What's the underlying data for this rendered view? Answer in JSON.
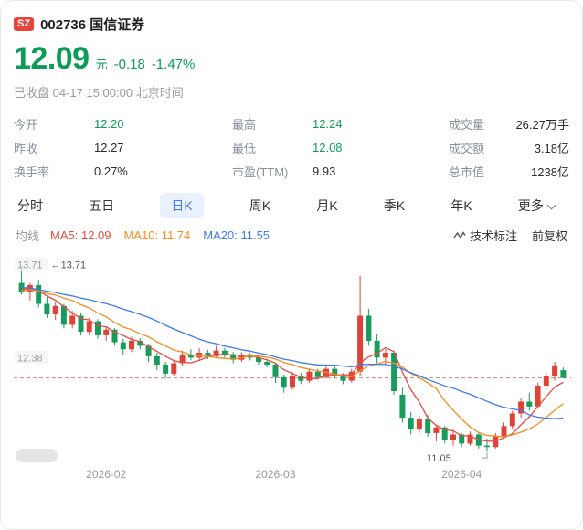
{
  "header": {
    "exchange": "SZ",
    "title": "002736 国信证券"
  },
  "quote": {
    "price": "12.09",
    "unit": "元",
    "change": "-0.18",
    "change_pct": "-1.47%",
    "status": "已收盘 04-17 15:00:00 北京时间"
  },
  "stats": {
    "columns": [
      [
        {
          "key": "open",
          "label": "今开",
          "value": "12.20",
          "green": true
        },
        {
          "key": "prev-close",
          "label": "昨收",
          "value": "12.27",
          "green": false
        },
        {
          "key": "turnover-rate",
          "label": "换手率",
          "value": "0.27%",
          "green": false
        }
      ],
      [
        {
          "key": "high",
          "label": "最高",
          "value": "12.24",
          "green": true
        },
        {
          "key": "low",
          "label": "最低",
          "value": "12.08",
          "green": true
        },
        {
          "key": "pe-ttm",
          "label": "市盈(TTM)",
          "value": "9.93",
          "green": false
        }
      ],
      [
        {
          "key": "volume",
          "label": "成交量",
          "value": "26.27万手",
          "green": false
        },
        {
          "key": "amount",
          "label": "成交额",
          "value": "3.18亿",
          "green": false
        },
        {
          "key": "market-cap",
          "label": "总市值",
          "value": "1238亿",
          "green": false
        }
      ]
    ]
  },
  "tabs": {
    "items": [
      {
        "key": "minute",
        "label": "分时"
      },
      {
        "key": "five-day",
        "label": "五日"
      },
      {
        "key": "daily-k",
        "label": "日K"
      },
      {
        "key": "weekly-k",
        "label": "周K"
      },
      {
        "key": "monthly-k",
        "label": "月K"
      },
      {
        "key": "quarterly-k",
        "label": "季K"
      },
      {
        "key": "yearly-k",
        "label": "年K"
      }
    ],
    "active_index": 2,
    "more_label": "更多"
  },
  "ma_legend": {
    "prefix": "均线",
    "items": [
      {
        "key": "ma5",
        "name": "MA5",
        "value": "12.09"
      },
      {
        "key": "ma10",
        "name": "MA10",
        "value": "11.74"
      },
      {
        "key": "ma20",
        "name": "MA20",
        "value": "11.55"
      }
    ]
  },
  "chart_controls": {
    "annotation": "技术标注",
    "adjustment": "前复权"
  },
  "colors": {
    "green": "#0d9c57",
    "up": "#df4338",
    "down": "#179c5e",
    "ma5": "#e8493e",
    "ma10": "#f78c1e",
    "ma20": "#3e7bf0",
    "dashed": "#cf8278",
    "badge_bg": "#e5443c",
    "tab_active_bg": "#e8f1fd",
    "tab_active_text": "#3d7df5"
  },
  "chart_data": {
    "type": "candlestick",
    "title": "国信证券 日K",
    "y_min": 10.92,
    "y_max": 13.85,
    "dashed_price": 12.09,
    "axis_labels": [
      {
        "text": "13.71",
        "price": 13.71
      },
      {
        "text": "12.38",
        "price": 12.38
      }
    ],
    "high_marker": {
      "text": "13.71",
      "index": 0
    },
    "low_marker": {
      "text": "11.05",
      "index": 55
    },
    "months": [
      {
        "label": "2026-02",
        "index": 10
      },
      {
        "label": "2026-03",
        "index": 30
      },
      {
        "label": "2026-04",
        "index": 52
      }
    ],
    "pre_closes": [
      13.6,
      13.58,
      13.55,
      13.5,
      13.46,
      13.42,
      13.4,
      13.38,
      13.35,
      13.32,
      13.3,
      13.32,
      13.34,
      13.36,
      13.32,
      13.3,
      13.32,
      13.34,
      13.38,
      13.42
    ],
    "candles": [
      [
        13.45,
        13.71,
        13.28,
        13.32
      ],
      [
        13.32,
        13.45,
        13.2,
        13.42
      ],
      [
        13.42,
        13.5,
        13.1,
        13.15
      ],
      [
        13.15,
        13.25,
        12.95,
        13.0
      ],
      [
        13.0,
        13.18,
        12.92,
        13.12
      ],
      [
        13.12,
        13.15,
        12.8,
        12.85
      ],
      [
        12.85,
        13.05,
        12.8,
        12.98
      ],
      [
        12.98,
        13.02,
        12.7,
        12.75
      ],
      [
        12.75,
        12.95,
        12.7,
        12.9
      ],
      [
        12.9,
        12.93,
        12.65,
        12.7
      ],
      [
        12.7,
        12.82,
        12.62,
        12.78
      ],
      [
        12.78,
        12.8,
        12.55,
        12.6
      ],
      [
        12.6,
        12.65,
        12.42,
        12.5
      ],
      [
        12.5,
        12.68,
        12.46,
        12.62
      ],
      [
        12.62,
        12.66,
        12.5,
        12.55
      ],
      [
        12.55,
        12.58,
        12.32,
        12.4
      ],
      [
        12.4,
        12.45,
        12.2,
        12.28
      ],
      [
        12.28,
        12.32,
        12.08,
        12.15
      ],
      [
        12.15,
        12.35,
        12.12,
        12.3
      ],
      [
        12.3,
        12.48,
        12.26,
        12.42
      ],
      [
        12.42,
        12.5,
        12.34,
        12.38
      ],
      [
        12.38,
        12.52,
        12.35,
        12.45
      ],
      [
        12.45,
        12.49,
        12.36,
        12.4
      ],
      [
        12.4,
        12.55,
        12.38,
        12.48
      ],
      [
        12.48,
        12.52,
        12.38,
        12.42
      ],
      [
        12.42,
        12.46,
        12.3,
        12.35
      ],
      [
        12.35,
        12.46,
        12.32,
        12.42
      ],
      [
        12.42,
        12.45,
        12.34,
        12.38
      ],
      [
        12.38,
        12.42,
        12.28,
        12.32
      ],
      [
        12.32,
        12.36,
        12.24,
        12.28
      ],
      [
        12.28,
        12.3,
        12.02,
        12.1
      ],
      [
        12.1,
        12.14,
        11.88,
        11.95
      ],
      [
        11.95,
        12.18,
        11.92,
        12.12
      ],
      [
        12.12,
        12.16,
        12.0,
        12.05
      ],
      [
        12.05,
        12.22,
        12.02,
        12.18
      ],
      [
        12.18,
        12.22,
        12.06,
        12.1
      ],
      [
        12.1,
        12.28,
        12.08,
        12.22
      ],
      [
        12.22,
        12.26,
        12.08,
        12.12
      ],
      [
        12.12,
        12.16,
        12.0,
        12.05
      ],
      [
        12.05,
        12.22,
        12.02,
        12.18
      ],
      [
        12.18,
        13.55,
        12.12,
        12.98
      ],
      [
        12.98,
        13.08,
        12.55,
        12.62
      ],
      [
        12.62,
        12.72,
        12.3,
        12.38
      ],
      [
        12.38,
        12.5,
        12.28,
        12.45
      ],
      [
        12.45,
        12.48,
        11.85,
        11.9
      ],
      [
        11.85,
        11.95,
        11.45,
        11.52
      ],
      [
        11.52,
        11.6,
        11.28,
        11.35
      ],
      [
        11.35,
        11.55,
        11.3,
        11.5
      ],
      [
        11.5,
        11.56,
        11.25,
        11.3
      ],
      [
        11.3,
        11.42,
        11.18,
        11.38
      ],
      [
        11.38,
        11.4,
        11.15,
        11.2
      ],
      [
        11.2,
        11.35,
        11.12,
        11.28
      ],
      [
        11.28,
        11.3,
        11.1,
        11.15
      ],
      [
        11.15,
        11.32,
        11.12,
        11.28
      ],
      [
        11.28,
        11.3,
        11.08,
        11.12
      ],
      [
        11.12,
        11.22,
        11.05,
        11.1
      ],
      [
        11.1,
        11.3,
        11.08,
        11.26
      ],
      [
        11.26,
        11.45,
        11.22,
        11.4
      ],
      [
        11.4,
        11.62,
        11.35,
        11.58
      ],
      [
        11.58,
        11.8,
        11.52,
        11.75
      ],
      [
        11.75,
        11.88,
        11.62,
        11.68
      ],
      [
        11.68,
        12.02,
        11.65,
        11.98
      ],
      [
        11.98,
        12.18,
        11.92,
        12.12
      ],
      [
        12.12,
        12.32,
        12.05,
        12.27
      ],
      [
        12.2,
        12.24,
        12.08,
        12.09
      ]
    ]
  }
}
